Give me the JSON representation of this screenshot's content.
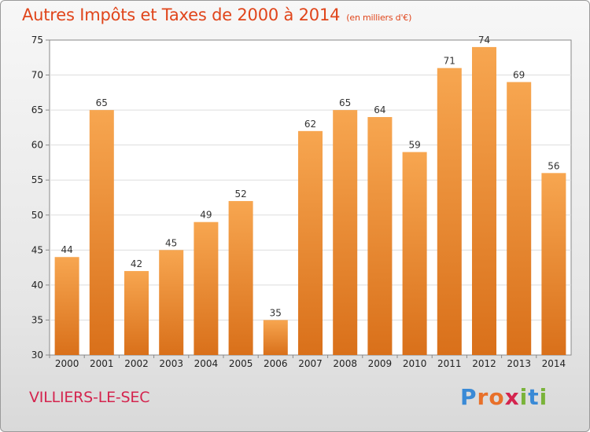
{
  "header": {
    "title": "Autres Impôts et Taxes de 2000 à 2014",
    "unit": "(en milliers d'€)"
  },
  "commune": "VILLIERS-LE-SEC",
  "logo": {
    "letters": [
      "P",
      "r",
      "o",
      "x",
      "i",
      "t",
      "i"
    ],
    "colors": [
      "#3a8ad6",
      "#e8702a",
      "#e8702a",
      "#d4244e",
      "#7ab33a",
      "#3a8ad6",
      "#7ab33a"
    ]
  },
  "chart_data": {
    "type": "bar",
    "title": "Autres Impôts et Taxes de 2000 à 2014",
    "unit": "(en milliers d'€)",
    "categories": [
      "2000",
      "2001",
      "2002",
      "2003",
      "2004",
      "2005",
      "2006",
      "2007",
      "2008",
      "2009",
      "2010",
      "2011",
      "2012",
      "2013",
      "2014"
    ],
    "values": [
      44,
      65,
      42,
      45,
      49,
      52,
      35,
      62,
      65,
      64,
      59,
      71,
      74,
      69,
      56
    ],
    "ylim": [
      30,
      75
    ],
    "yticks": [
      30,
      35,
      40,
      45,
      50,
      55,
      60,
      65,
      70,
      75
    ],
    "grid": true,
    "colors": {
      "bar_light": "#f7a650",
      "bar_dark": "#d9701a",
      "grid": "#dddddd"
    }
  }
}
